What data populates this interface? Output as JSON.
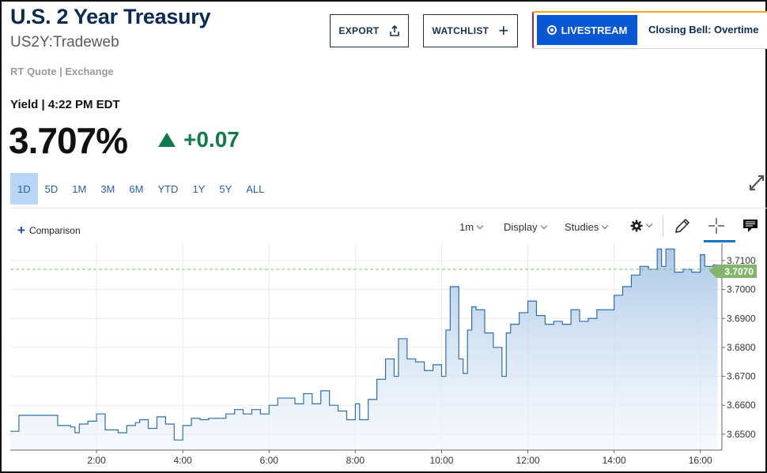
{
  "header": {
    "title": "U.S. 2 Year Treasury",
    "symbol": "US2Y:Tradeweb",
    "quote_source": "RT Quote | Exchange",
    "yield_label": "Yield | 4:22 PM EDT",
    "price": "3.707%",
    "change": "+0.07"
  },
  "actions": {
    "export_label": "EXPORT",
    "watchlist_label": "WATCHLIST"
  },
  "livestream": {
    "button_label": "LIVESTREAM",
    "show_title": "Closing Bell: Overtime"
  },
  "ranges": [
    "1D",
    "5D",
    "1M",
    "3M",
    "6M",
    "YTD",
    "1Y",
    "5Y",
    "ALL"
  ],
  "active_range": "1D",
  "toolbar": {
    "comparison_label": "Comparison",
    "interval_label": "1m",
    "display_label": "Display",
    "studies_label": "Studies"
  },
  "colors": {
    "up": "#0f7b48",
    "line": "#2f6fae",
    "last_label_bg": "#85b56d",
    "active_range_bg": "#b9d6f7"
  },
  "icons": [
    "export-icon",
    "plus-icon",
    "expand-icon",
    "gear-icon",
    "pencil-icon",
    "crosshair-icon",
    "comment-icon"
  ],
  "chart_data": {
    "type": "area",
    "last_value_label": "3.7070",
    "x_ticks": [
      "2:00",
      "4:00",
      "6:00",
      "8:00",
      "10:00",
      "12:00",
      "14:00",
      "16:00"
    ],
    "y_ticks": [
      "3.6500",
      "3.6600",
      "3.6700",
      "3.6800",
      "3.6900",
      "3.7000",
      "3.7100"
    ],
    "xlim": [
      0,
      16.5
    ],
    "ylim": [
      3.6445,
      3.716
    ],
    "last_value": 3.707,
    "grid": true,
    "x": [
      0.0,
      0.2,
      1.0,
      1.1,
      1.4,
      1.5,
      1.6,
      1.8,
      2.0,
      2.2,
      2.5,
      2.7,
      2.9,
      3.0,
      3.2,
      3.4,
      3.6,
      3.8,
      4.0,
      4.2,
      4.4,
      4.6,
      4.8,
      5.0,
      5.2,
      5.4,
      5.6,
      5.8,
      6.0,
      6.2,
      6.4,
      6.6,
      6.8,
      7.0,
      7.2,
      7.4,
      7.6,
      7.8,
      8.0,
      8.1,
      8.3,
      8.5,
      8.7,
      8.9,
      9.0,
      9.2,
      9.4,
      9.6,
      9.8,
      10.0,
      10.1,
      10.2,
      10.4,
      10.5,
      10.6,
      10.7,
      10.8,
      11.0,
      11.2,
      11.4,
      11.5,
      11.6,
      11.8,
      12.0,
      12.2,
      12.4,
      12.6,
      12.8,
      13.0,
      13.2,
      13.4,
      13.6,
      13.8,
      14.0,
      14.2,
      14.4,
      14.6,
      14.8,
      15.0,
      15.1,
      15.2,
      15.4,
      15.6,
      15.8,
      16.0,
      16.1,
      16.3,
      16.4
    ],
    "values": [
      3.651,
      3.6565,
      3.6565,
      3.653,
      3.6525,
      3.6505,
      3.6535,
      3.6545,
      3.657,
      3.6515,
      3.6505,
      3.653,
      3.654,
      3.655,
      3.652,
      3.656,
      3.6535,
      3.648,
      3.653,
      3.6555,
      3.655,
      3.6555,
      3.6555,
      3.657,
      3.6585,
      3.657,
      3.6585,
      3.657,
      3.66,
      3.6625,
      3.6625,
      3.6605,
      3.664,
      3.6605,
      3.665,
      3.66,
      3.658,
      3.655,
      3.6605,
      3.655,
      3.662,
      3.669,
      3.676,
      3.67,
      3.683,
      3.676,
      3.675,
      3.672,
      3.674,
      3.67,
      3.686,
      3.701,
      3.676,
      3.671,
      3.686,
      3.694,
      3.693,
      3.685,
      3.68,
      3.67,
      3.685,
      3.688,
      3.692,
      3.696,
      3.691,
      3.688,
      3.689,
      3.688,
      3.693,
      3.689,
      3.69,
      3.693,
      3.693,
      3.698,
      3.701,
      3.705,
      3.708,
      3.707,
      3.714,
      3.708,
      3.714,
      3.706,
      3.707,
      3.706,
      3.712,
      3.708,
      3.7085,
      3.707
    ]
  }
}
